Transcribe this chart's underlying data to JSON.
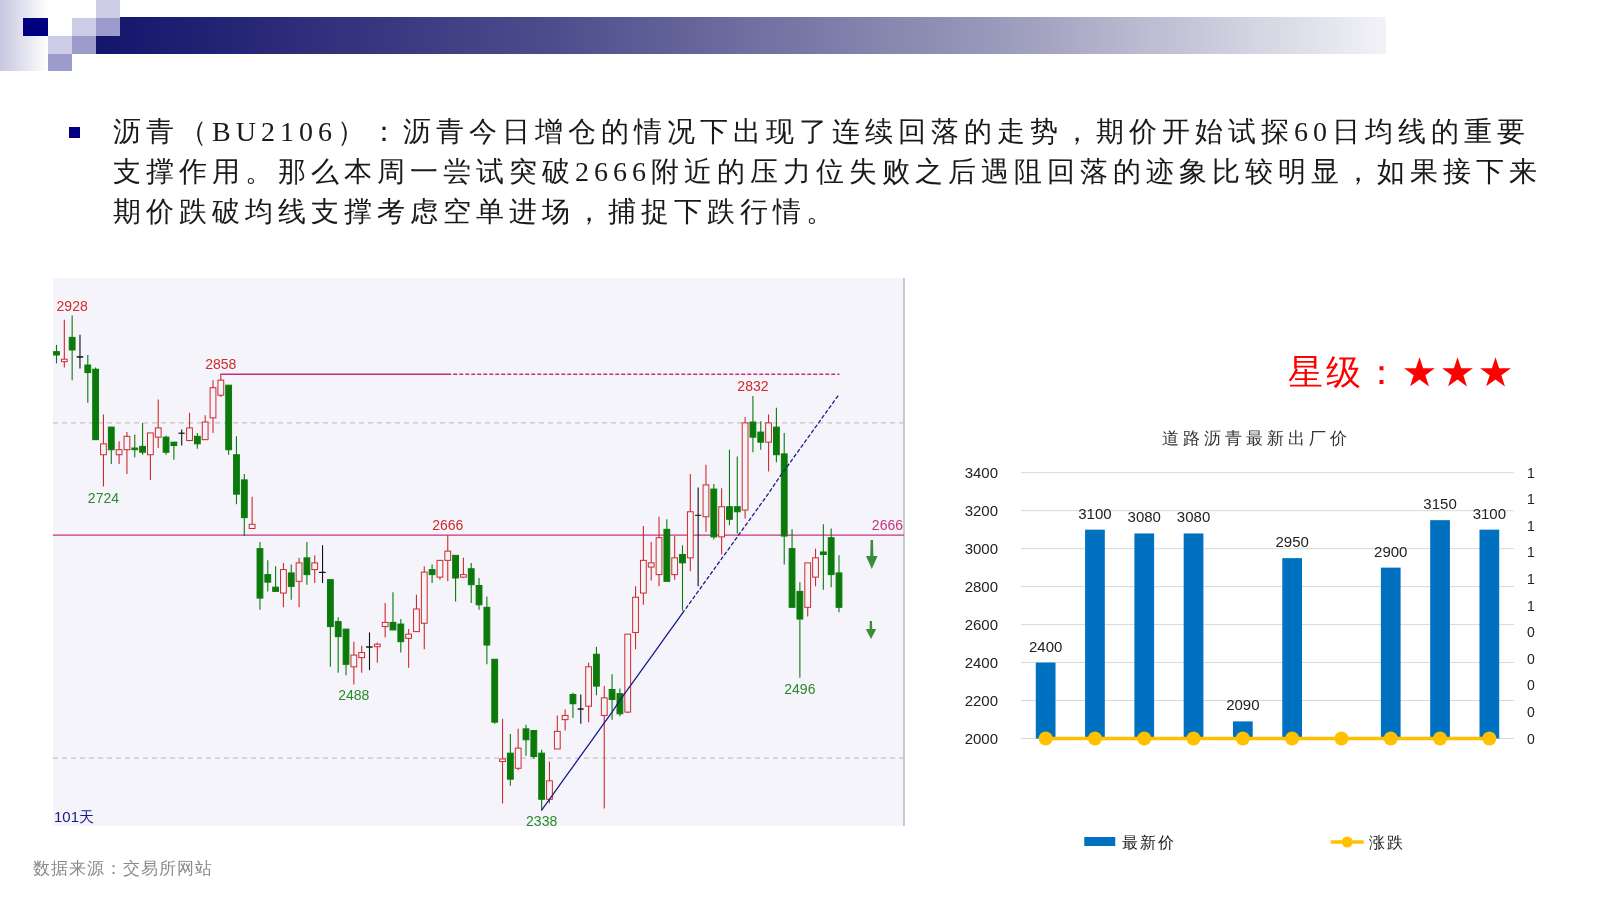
{
  "chart_data": [
    {
      "type": "candlestick",
      "title": "沥青（BU2106）：沥青今日增仓的情况下出现了连续回落的走势，期价开始试探60日均线的重要支撑作用。那么本周一尝试突破2666附近的压力位失败之后遇阻回落的迹象比较明显，如果接下来期价跌破均线支撑考虑空单进场，捕捉下跌行情。",
      "categories": [
        null,
        null,
        null,
        null,
        null,
        null,
        null,
        null,
        null,
        null,
        null,
        null,
        null,
        null,
        null,
        null,
        null,
        null,
        null,
        null,
        null,
        null,
        null,
        null,
        null,
        null,
        null,
        null,
        null,
        null,
        null,
        null,
        null,
        null,
        null,
        null,
        null,
        null,
        null,
        null,
        null,
        null,
        null,
        null,
        null,
        null,
        null,
        null,
        null,
        null,
        null,
        null,
        null,
        null,
        null,
        null,
        null,
        null,
        null,
        null,
        null,
        null,
        null,
        null,
        null,
        null,
        null,
        null,
        null,
        null,
        null,
        null,
        null,
        null,
        null,
        null,
        null,
        null,
        null,
        null,
        null,
        null,
        null,
        null,
        null,
        null,
        null,
        null,
        null,
        null,
        null,
        null,
        null,
        null,
        null,
        null,
        null,
        null,
        null,
        null,
        null
      ],
      "ohlc": [
        [
          2885,
          2893,
          2871,
          2881
        ],
        [
          2873,
          2923,
          2866,
          2876
        ],
        [
          2902,
          2928,
          2851,
          2887
        ],
        [
          2879,
          2905,
          2865,
          2879
        ],
        [
          2869,
          2881,
          2824,
          2860
        ],
        [
          2864,
          2866,
          2780,
          2780
        ],
        [
          2762,
          2810,
          2724,
          2775
        ],
        [
          2795,
          2795,
          2751,
          2768
        ],
        [
          2762,
          2778,
          2751,
          2768
        ],
        [
          2768,
          2789,
          2739,
          2784
        ],
        [
          2770,
          2786,
          2759,
          2768
        ],
        [
          2772,
          2800,
          2762,
          2765
        ],
        [
          2762,
          2788,
          2732,
          2788
        ],
        [
          2783,
          2828,
          2770,
          2794
        ],
        [
          2783,
          2785,
          2762,
          2765
        ],
        [
          2777,
          2777,
          2756,
          2773
        ],
        [
          2788,
          2792,
          2773,
          2788
        ],
        [
          2779,
          2812,
          2778,
          2794
        ],
        [
          2784,
          2788,
          2769,
          2775
        ],
        [
          2780,
          2809,
          2780,
          2801
        ],
        [
          2806,
          2851,
          2788,
          2842
        ],
        [
          2833,
          2858,
          2831,
          2851
        ],
        [
          2845,
          2845,
          2762,
          2768
        ],
        [
          2762,
          2784,
          2703,
          2715
        ],
        [
          2732,
          2739,
          2665,
          2687
        ],
        [
          2674,
          2712,
          2674,
          2679
        ],
        [
          2650,
          2658,
          2577,
          2591
        ],
        [
          2619,
          2636,
          2599,
          2610
        ],
        [
          2604,
          2629,
          2599,
          2599
        ],
        [
          2597,
          2633,
          2580,
          2625
        ],
        [
          2621,
          2631,
          2589,
          2605
        ],
        [
          2611,
          2639,
          2580,
          2633
        ],
        [
          2639,
          2658,
          2607,
          2619
        ],
        [
          2625,
          2642,
          2609,
          2633
        ],
        [
          2622,
          2654,
          2609,
          2622
        ],
        [
          2613,
          2613,
          2509,
          2557
        ],
        [
          2563,
          2568,
          2502,
          2545
        ],
        [
          2554,
          2554,
          2499,
          2512
        ],
        [
          2509,
          2539,
          2488,
          2523
        ],
        [
          2520,
          2534,
          2502,
          2526
        ],
        [
          2533,
          2550,
          2505,
          2533
        ],
        [
          2533,
          2538,
          2514,
          2536
        ],
        [
          2557,
          2585,
          2544,
          2562
        ],
        [
          2562,
          2598,
          2553,
          2553
        ],
        [
          2560,
          2566,
          2526,
          2539
        ],
        [
          2543,
          2554,
          2508,
          2548
        ],
        [
          2551,
          2595,
          2551,
          2578
        ],
        [
          2561,
          2629,
          2530,
          2622
        ],
        [
          2625,
          2631,
          2609,
          2619
        ],
        [
          2616,
          2636,
          2613,
          2636
        ],
        [
          2636,
          2666,
          2611,
          2647
        ],
        [
          2642,
          2642,
          2587,
          2615
        ],
        [
          2616,
          2639,
          2615,
          2619
        ],
        [
          2626,
          2633,
          2585,
          2607
        ],
        [
          2606,
          2615,
          2577,
          2583
        ],
        [
          2580,
          2593,
          2512,
          2535
        ],
        [
          2518,
          2518,
          2441,
          2443
        ],
        [
          2396,
          2447,
          2346,
          2399
        ],
        [
          2406,
          2429,
          2367,
          2375
        ],
        [
          2388,
          2435,
          2386,
          2412
        ],
        [
          2435,
          2440,
          2403,
          2422
        ],
        [
          2433,
          2433,
          2399,
          2402
        ],
        [
          2406,
          2410,
          2338,
          2351
        ],
        [
          2351,
          2396,
          2346,
          2373
        ],
        [
          2411,
          2451,
          2411,
          2432
        ],
        [
          2446,
          2458,
          2433,
          2451
        ],
        [
          2476,
          2478,
          2448,
          2465
        ],
        [
          2459,
          2476,
          2441,
          2459
        ],
        [
          2462,
          2514,
          2443,
          2509
        ],
        [
          2524,
          2533,
          2475,
          2486
        ],
        [
          2451,
          2486,
          2340,
          2472
        ],
        [
          2482,
          2500,
          2446,
          2470
        ],
        [
          2477,
          2483,
          2450,
          2453
        ],
        [
          2455,
          2548,
          2454,
          2548
        ],
        [
          2550,
          2605,
          2530,
          2592
        ],
        [
          2597,
          2677,
          2583,
          2636
        ],
        [
          2628,
          2658,
          2612,
          2633
        ],
        [
          2619,
          2688,
          2605,
          2663
        ],
        [
          2673,
          2685,
          2611,
          2611
        ],
        [
          2619,
          2665,
          2613,
          2639
        ],
        [
          2643,
          2654,
          2576,
          2633
        ],
        [
          2639,
          2739,
          2623,
          2694
        ],
        [
          2690,
          2723,
          2605,
          2690
        ],
        [
          2688,
          2750,
          2670,
          2726
        ],
        [
          2721,
          2727,
          2661,
          2664
        ],
        [
          2664,
          2722,
          2643,
          2700
        ],
        [
          2700,
          2768,
          2678,
          2685
        ],
        [
          2700,
          2760,
          2668,
          2694
        ],
        [
          2696,
          2807,
          2686,
          2800
        ],
        [
          2801,
          2832,
          2765,
          2783
        ],
        [
          2789,
          2802,
          2768,
          2777
        ],
        [
          2777,
          2810,
          2742,
          2800
        ],
        [
          2795,
          2818,
          2753,
          2762
        ],
        [
          2763,
          2788,
          2631,
          2665
        ],
        [
          2650,
          2673,
          2580,
          2580
        ],
        [
          2599,
          2610,
          2496,
          2566
        ],
        [
          2580,
          2633,
          2569,
          2633
        ],
        [
          2616,
          2650,
          2605,
          2639
        ],
        [
          2646,
          2679,
          2601,
          2643
        ],
        [
          2663,
          2674,
          2604,
          2619
        ],
        [
          2621,
          2642,
          2574,
          2580
        ]
      ],
      "series": [
        {
          "type": "line",
          "color": "#1c1c8a",
          "line_style": "solid",
          "values": [
            null,
            null,
            null,
            null,
            null,
            null,
            null,
            null,
            null,
            null,
            null,
            null,
            null,
            null,
            null,
            null,
            null,
            null,
            null,
            null,
            null,
            null,
            null,
            null,
            null,
            null,
            null,
            null,
            null,
            null,
            null,
            null,
            null,
            null,
            null,
            null,
            null,
            null,
            null,
            null,
            null,
            null,
            null,
            null,
            null,
            null,
            null,
            null,
            null,
            null,
            null,
            null,
            null,
            null,
            null,
            null,
            null,
            null,
            null,
            null,
            null,
            null,
            2338,
            2351,
            2364,
            2377,
            2390,
            2403,
            2416,
            2429,
            2442,
            2455,
            2469,
            2482,
            2495,
            2508,
            2521,
            2534,
            2547,
            2560,
            2573,
            null,
            null,
            null,
            null,
            null,
            null,
            null,
            null,
            null,
            null,
            null,
            null,
            null,
            null,
            null,
            null,
            null,
            null,
            null,
            null
          ]
        },
        {
          "type": "line",
          "color": "#1c1c8a",
          "line_style": "dotted",
          "values": [
            null,
            null,
            null,
            null,
            null,
            null,
            null,
            null,
            null,
            null,
            null,
            null,
            null,
            null,
            null,
            null,
            null,
            null,
            null,
            null,
            null,
            null,
            null,
            null,
            null,
            null,
            null,
            null,
            null,
            null,
            null,
            null,
            null,
            null,
            null,
            null,
            null,
            null,
            null,
            null,
            null,
            null,
            null,
            null,
            null,
            null,
            null,
            null,
            null,
            null,
            null,
            null,
            null,
            null,
            null,
            null,
            null,
            null,
            null,
            null,
            null,
            null,
            null,
            null,
            null,
            null,
            null,
            null,
            null,
            null,
            null,
            null,
            null,
            null,
            null,
            null,
            null,
            null,
            null,
            null,
            2573,
            2586,
            2599,
            2612,
            2625,
            2638,
            2651,
            2664,
            2677,
            2690,
            2703,
            2716,
            2730,
            2743,
            2756,
            2769,
            2782,
            2795,
            2808,
            2821,
            2834
          ]
        },
        {
          "type": "line",
          "color": "#c2307a",
          "line_style": "solid",
          "values": [
            null,
            null,
            null,
            null,
            null,
            null,
            null,
            null,
            null,
            null,
            null,
            null,
            null,
            null,
            null,
            null,
            null,
            null,
            null,
            null,
            null,
            2858,
            2858,
            2858,
            2858,
            2858,
            2858,
            2858,
            2858,
            2858,
            2858,
            2858,
            2858,
            2858,
            2858,
            2858,
            2858,
            2858,
            2858,
            2858,
            2858,
            2858,
            2858,
            2858,
            2858,
            2858,
            2858,
            2858,
            2858,
            2858,
            2858,
            null,
            null,
            null,
            null,
            null,
            null,
            null,
            null,
            null,
            null,
            null,
            null,
            null,
            null,
            null,
            null,
            null,
            null,
            null,
            null,
            null,
            null,
            null,
            null,
            null,
            null,
            null,
            null,
            null,
            null,
            null,
            null,
            null,
            null,
            null,
            null,
            null,
            null,
            null,
            null,
            null,
            null,
            null,
            null,
            null,
            null,
            null,
            null,
            null,
            null
          ]
        },
        {
          "type": "line",
          "color": "#c2307a",
          "line_style": "dotted",
          "values": [
            null,
            null,
            null,
            null,
            null,
            null,
            null,
            null,
            null,
            null,
            null,
            null,
            null,
            null,
            null,
            null,
            null,
            null,
            null,
            null,
            null,
            null,
            null,
            null,
            null,
            null,
            null,
            null,
            null,
            null,
            null,
            null,
            null,
            null,
            null,
            null,
            null,
            null,
            null,
            null,
            null,
            null,
            null,
            null,
            null,
            null,
            null,
            null,
            null,
            null,
            2858,
            2858,
            2858,
            2858,
            2858,
            2858,
            2858,
            2858,
            2858,
            2858,
            2858,
            2858,
            2858,
            2858,
            2858,
            2858,
            2858,
            2858,
            2858,
            2858,
            2858,
            2858,
            2858,
            2858,
            2858,
            2858,
            2858,
            2858,
            2858,
            2858,
            2858,
            2858,
            2858,
            2858,
            2858,
            2858,
            2858,
            2858,
            2858,
            2858,
            2858,
            2858,
            2858,
            2858,
            2858,
            2858,
            2858,
            2858,
            2858,
            2858,
            2858
          ]
        }
      ],
      "ref_lines": [
        {
          "axis": "y",
          "value": 2800,
          "color": "#c4c4c4",
          "line_style": "dashed"
        },
        {
          "axis": "y",
          "value": 2400,
          "color": "#c4c4c4",
          "line_style": "dashed"
        },
        {
          "axis": "y",
          "value": 2666,
          "label": "2666",
          "color": "#c8347e",
          "line_style": "solid"
        }
      ],
      "annotations": [
        "101天",
        {
          "text": "2928",
          "y": 2928
        },
        {
          "text": "2858",
          "y": 2858
        },
        {
          "text": "2724",
          "y": 2724
        },
        {
          "text": "2666",
          "y": 2666
        },
        {
          "text": "2488",
          "y": 2488
        },
        {
          "text": "2338",
          "y": 2338
        },
        {
          "text": "2832",
          "y": 2832
        },
        {
          "text": "2496",
          "y": 2496
        },
        "数据来源：交易所网站"
      ]
    },
    {
      "type": "bar",
      "title": "道路沥青最新出厂价",
      "categories": [
        null,
        null,
        null,
        null,
        null,
        null,
        null,
        null,
        null,
        null
      ],
      "series": [
        {
          "name": "最新价",
          "type": "bar",
          "color": "#0070c0",
          "values": [
            2400,
            3100,
            3080,
            3080,
            2090,
            2950,
            null,
            2900,
            3150,
            3100
          ],
          "value_labels": [
            "2400",
            "3100",
            "3080",
            "3080",
            "2090",
            "2950",
            null,
            "2900",
            "3150",
            "3100"
          ]
        },
        {
          "name": "涨跌",
          "type": "line",
          "axis": "y2",
          "color": "#ffc000",
          "values": [
            0,
            0,
            0,
            0,
            0,
            0,
            0,
            0,
            0,
            0
          ]
        }
      ],
      "ylim": [
        2000,
        3400
      ],
      "yticks": [
        2000,
        2200,
        2400,
        2600,
        2800,
        3000,
        3200,
        3400
      ],
      "y2lim": [
        0,
        1
      ],
      "y2ticks": [
        0,
        {
          "value": 0.1,
          "label": "0"
        },
        {
          "value": 0.2,
          "label": "0"
        },
        {
          "value": 0.3,
          "label": "0"
        },
        {
          "value": 0.4,
          "label": "0"
        },
        {
          "value": 0.5,
          "label": "1"
        },
        {
          "value": 0.6,
          "label": "1"
        },
        {
          "value": 0.7,
          "label": "1"
        },
        {
          "value": 0.8,
          "label": "1"
        },
        {
          "value": 0.9,
          "label": "1"
        },
        1
      ],
      "grid": "y",
      "legend": "bottom",
      "marker": "circle",
      "annotations": [
        "星级：★★★"
      ]
    }
  ]
}
